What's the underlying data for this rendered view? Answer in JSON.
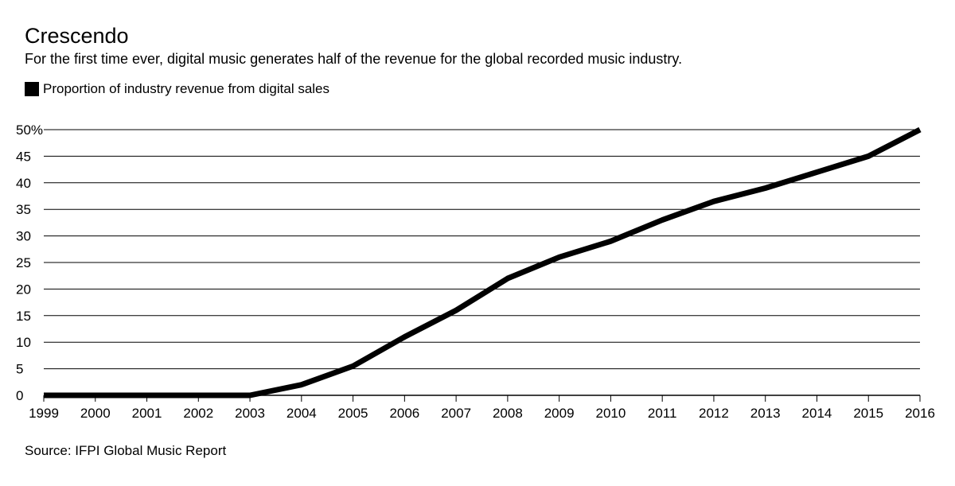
{
  "title": "Crescendo",
  "subtitle": "For the first time ever, digital music generates half of the revenue for the global recorded music industry.",
  "source": "Source: IFPI Global Music Report",
  "colors": {
    "line": "#000000",
    "grid": "#000000",
    "background": "#ffffff"
  },
  "chart_data": {
    "type": "line",
    "title": "Crescendo",
    "xlabel": "",
    "ylabel": "",
    "ylim": [
      0,
      50
    ],
    "xlim": [
      1999,
      2016
    ],
    "y_ticks": [
      0,
      5,
      10,
      15,
      20,
      25,
      30,
      35,
      40,
      45,
      50
    ],
    "y_tick_labels": [
      "0",
      "5",
      "10",
      "15",
      "20",
      "25",
      "30",
      "35",
      "40",
      "45",
      "50%"
    ],
    "x_ticks": [
      1999,
      2000,
      2001,
      2002,
      2003,
      2004,
      2005,
      2006,
      2007,
      2008,
      2009,
      2010,
      2011,
      2012,
      2013,
      2014,
      2015,
      2016
    ],
    "x_tick_labels": [
      "1999",
      "2000",
      "2001",
      "2002",
      "2003",
      "2004",
      "2005",
      "2006",
      "2007",
      "2008",
      "2009",
      "2010",
      "2011",
      "2012",
      "2013",
      "2014",
      "2015",
      "2016"
    ],
    "grid": true,
    "legend_position": "top-left",
    "series": [
      {
        "name": "Proportion of industry revenue from digital sales",
        "x": [
          1999,
          2000,
          2001,
          2002,
          2003,
          2004,
          2005,
          2006,
          2007,
          2008,
          2009,
          2010,
          2011,
          2012,
          2013,
          2014,
          2015,
          2016
        ],
        "values": [
          0,
          0,
          0,
          0,
          0,
          2,
          5.5,
          11,
          16,
          22,
          26,
          29,
          33,
          36.5,
          39,
          42,
          45,
          50
        ]
      }
    ]
  }
}
